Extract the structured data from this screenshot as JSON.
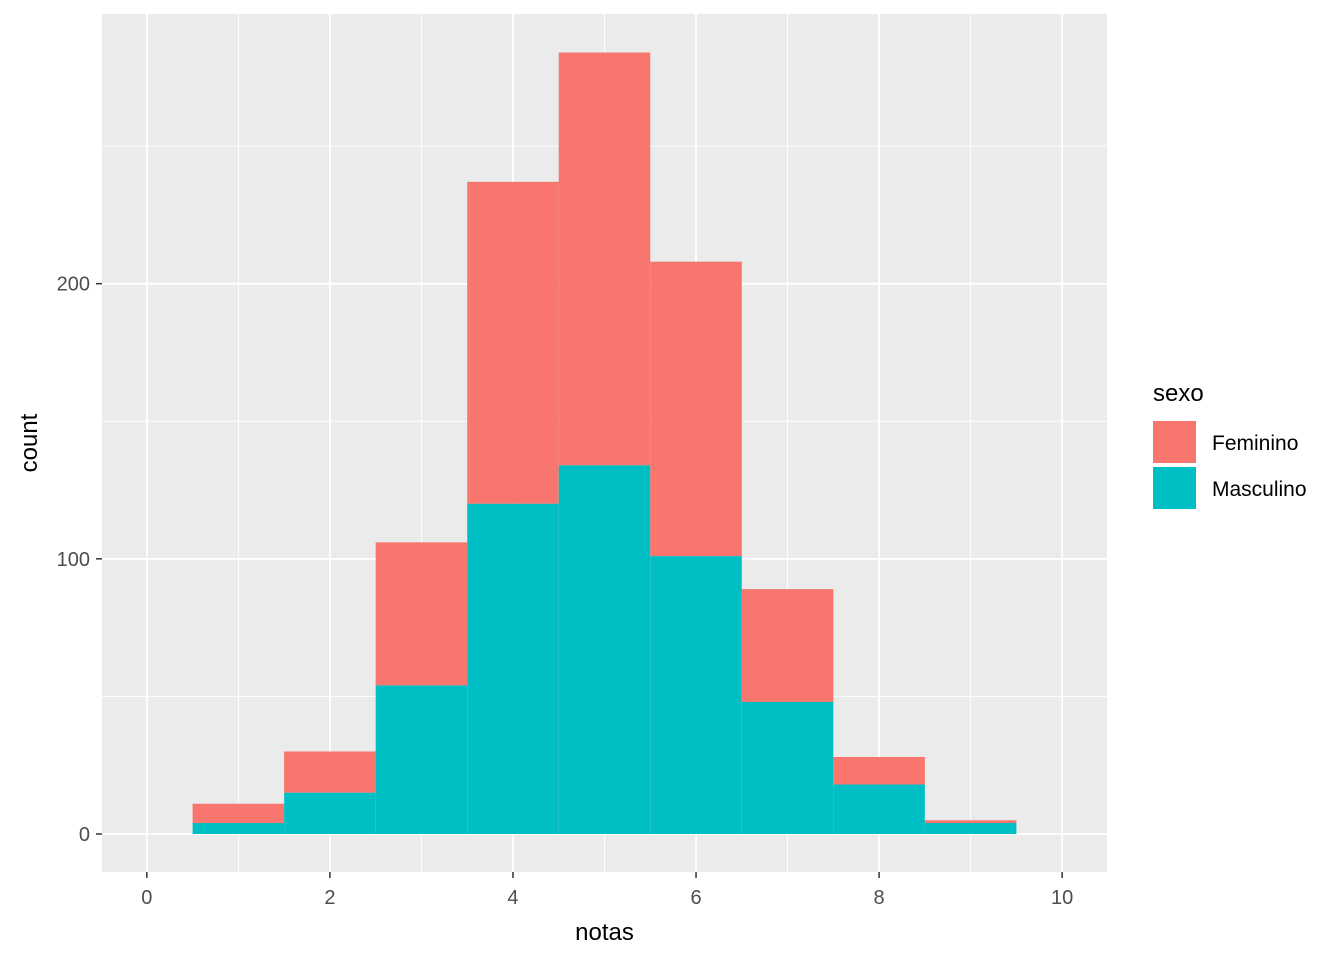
{
  "chart_data": {
    "type": "bar",
    "stacked": true,
    "bin_centers": [
      1,
      2,
      3,
      4,
      5,
      6,
      7,
      8,
      9
    ],
    "bin_width": 1,
    "series": [
      {
        "name": "Feminino",
        "values": [
          7,
          15,
          52,
          117,
          150,
          107,
          41,
          10,
          1
        ],
        "color": "#F8766D"
      },
      {
        "name": "Masculino",
        "values": [
          4,
          15,
          54,
          120,
          134,
          101,
          48,
          18,
          4
        ],
        "color": "#00BFC4"
      }
    ],
    "xlabel": "notas",
    "ylabel": "count",
    "xlim": [
      -0.49,
      10.49
    ],
    "ylim": [
      -13.8,
      298
    ],
    "x_ticks": [
      "0",
      "2",
      "4",
      "6",
      "8",
      "10"
    ],
    "y_ticks": [
      "0",
      "100",
      "200"
    ],
    "grid": true,
    "panel_background": "#EBEBEB",
    "legend": {
      "title": "sexo",
      "position": "right"
    }
  }
}
